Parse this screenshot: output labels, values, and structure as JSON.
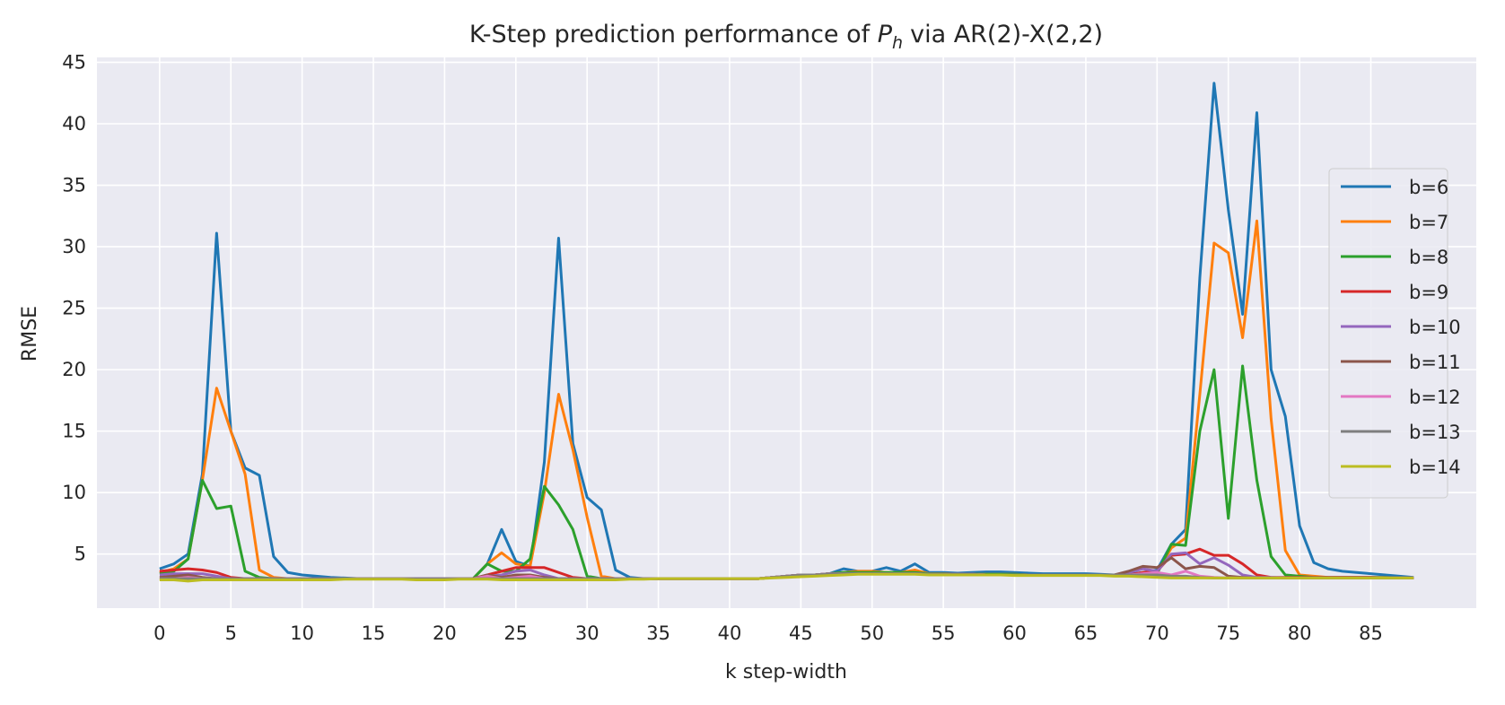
{
  "chart_data": {
    "type": "line",
    "title": "K-Step prediction performance of",
    "title_symbol": "P",
    "title_subscript": "h",
    "title_suffix": "via AR(2)-X(2,2)",
    "xlabel": "k step-width",
    "ylabel": "RMSE",
    "xlim": [
      -4.4,
      92.4
    ],
    "ylim": [
      0.6,
      45.4
    ],
    "xticks": [
      0,
      5,
      10,
      15,
      20,
      25,
      30,
      35,
      40,
      45,
      50,
      55,
      60,
      65,
      70,
      75,
      80,
      85
    ],
    "yticks": [
      5,
      10,
      15,
      20,
      25,
      30,
      35,
      40,
      45
    ],
    "grid": true,
    "legend_position": "right",
    "background": "#eaeaf2",
    "grid_color": "#ffffff",
    "x": [
      0,
      1,
      2,
      3,
      4,
      5,
      6,
      7,
      8,
      9,
      10,
      11,
      12,
      13,
      14,
      15,
      16,
      17,
      18,
      19,
      20,
      21,
      22,
      23,
      24,
      25,
      26,
      27,
      28,
      29,
      30,
      31,
      32,
      33,
      34,
      35,
      36,
      37,
      38,
      39,
      40,
      41,
      42,
      43,
      44,
      45,
      46,
      47,
      48,
      49,
      50,
      51,
      52,
      53,
      54,
      55,
      56,
      57,
      58,
      59,
      60,
      61,
      62,
      63,
      64,
      65,
      66,
      67,
      68,
      69,
      70,
      71,
      72,
      73,
      74,
      75,
      76,
      77,
      78,
      79,
      80,
      81,
      82,
      83,
      84,
      85,
      86,
      87,
      88
    ],
    "series": [
      {
        "name": "b=6",
        "color": "#1f77b4",
        "values": [
          3.8,
          4.2,
          5.0,
          11.5,
          31.1,
          15.0,
          12.0,
          11.4,
          4.8,
          3.5,
          3.3,
          3.2,
          3.1,
          3.05,
          3.0,
          3.0,
          3.0,
          3.0,
          3.0,
          3.0,
          3.0,
          3.0,
          3.0,
          4.2,
          7.0,
          4.4,
          4.0,
          12.5,
          30.7,
          14.0,
          9.6,
          8.6,
          3.7,
          3.1,
          3.0,
          3.0,
          3.0,
          3.0,
          3.0,
          3.0,
          3.0,
          3.0,
          3.0,
          3.1,
          3.2,
          3.3,
          3.3,
          3.4,
          3.8,
          3.6,
          3.6,
          3.9,
          3.6,
          4.2,
          3.5,
          3.5,
          3.45,
          3.5,
          3.55,
          3.55,
          3.5,
          3.45,
          3.4,
          3.4,
          3.4,
          3.4,
          3.35,
          3.3,
          3.35,
          3.5,
          3.7,
          5.8,
          7.0,
          27.5,
          43.3,
          33.0,
          24.5,
          40.9,
          20.0,
          16.2,
          7.3,
          4.3,
          3.8,
          3.6,
          3.5,
          3.4,
          3.3,
          3.2,
          3.1
        ]
      },
      {
        "name": "b=7",
        "color": "#ff7f0e",
        "values": [
          3.5,
          3.8,
          4.6,
          11.0,
          18.5,
          15.0,
          11.5,
          3.7,
          3.1,
          3.0,
          3.0,
          3.0,
          3.0,
          3.0,
          3.0,
          3.0,
          3.0,
          3.0,
          3.0,
          3.0,
          3.0,
          3.0,
          3.0,
          4.2,
          5.1,
          4.2,
          4.0,
          10.0,
          18.0,
          13.5,
          8.0,
          3.2,
          3.0,
          3.0,
          3.0,
          3.0,
          3.0,
          3.0,
          3.0,
          3.0,
          3.0,
          3.0,
          3.0,
          3.1,
          3.2,
          3.3,
          3.3,
          3.4,
          3.5,
          3.6,
          3.6,
          3.5,
          3.5,
          3.7,
          3.4,
          3.4,
          3.35,
          3.35,
          3.35,
          3.35,
          3.35,
          3.3,
          3.3,
          3.3,
          3.3,
          3.3,
          3.3,
          3.3,
          3.3,
          3.4,
          3.5,
          5.5,
          6.3,
          18.0,
          30.3,
          29.5,
          22.6,
          32.1,
          16.0,
          5.3,
          3.3,
          3.2,
          3.1,
          3.1,
          3.1,
          3.1,
          3.1,
          3.05,
          3.05
        ]
      },
      {
        "name": "b=8",
        "color": "#2ca02c",
        "values": [
          3.4,
          3.6,
          4.6,
          11.0,
          8.7,
          8.9,
          3.6,
          3.1,
          3.0,
          3.0,
          3.0,
          3.0,
          3.0,
          3.0,
          3.0,
          3.0,
          3.0,
          3.0,
          3.0,
          3.0,
          3.0,
          3.0,
          3.0,
          4.2,
          3.6,
          3.6,
          4.6,
          10.5,
          9.0,
          7.0,
          3.2,
          3.0,
          3.0,
          3.0,
          3.0,
          3.0,
          3.0,
          3.0,
          3.0,
          3.0,
          3.0,
          3.0,
          3.0,
          3.1,
          3.2,
          3.3,
          3.3,
          3.4,
          3.5,
          3.5,
          3.5,
          3.5,
          3.5,
          3.5,
          3.4,
          3.4,
          3.35,
          3.35,
          3.35,
          3.35,
          3.35,
          3.3,
          3.3,
          3.3,
          3.3,
          3.3,
          3.3,
          3.3,
          3.3,
          3.4,
          3.4,
          5.8,
          5.7,
          15.0,
          20.0,
          7.9,
          20.3,
          11.0,
          4.8,
          3.3,
          3.2,
          3.1,
          3.1,
          3.1,
          3.1,
          3.1,
          3.1,
          3.05,
          3.05
        ]
      },
      {
        "name": "b=9",
        "color": "#d62728",
        "values": [
          3.6,
          3.7,
          3.8,
          3.7,
          3.5,
          3.1,
          3.0,
          3.0,
          3.0,
          3.0,
          3.0,
          3.0,
          3.0,
          3.0,
          3.0,
          3.0,
          3.0,
          3.0,
          3.0,
          3.0,
          3.0,
          3.0,
          3.0,
          3.3,
          3.6,
          3.9,
          3.9,
          3.9,
          3.5,
          3.1,
          3.0,
          3.0,
          3.0,
          3.0,
          3.0,
          3.0,
          3.0,
          3.0,
          3.0,
          3.0,
          3.0,
          3.0,
          3.0,
          3.1,
          3.2,
          3.3,
          3.3,
          3.4,
          3.4,
          3.4,
          3.4,
          3.4,
          3.4,
          3.4,
          3.35,
          3.35,
          3.35,
          3.35,
          3.3,
          3.3,
          3.3,
          3.3,
          3.3,
          3.3,
          3.3,
          3.3,
          3.3,
          3.3,
          3.3,
          3.5,
          3.6,
          4.9,
          5.0,
          5.4,
          4.9,
          4.9,
          4.2,
          3.3,
          3.1,
          3.1,
          3.1,
          3.1,
          3.1,
          3.1,
          3.1,
          3.1,
          3.05,
          3.05,
          3.05
        ]
      },
      {
        "name": "b=10",
        "color": "#9467bd",
        "values": [
          3.3,
          3.4,
          3.4,
          3.4,
          3.2,
          3.0,
          3.0,
          3.0,
          3.0,
          3.0,
          3.0,
          3.0,
          3.0,
          3.0,
          3.0,
          3.0,
          3.0,
          3.0,
          3.0,
          3.0,
          3.0,
          3.0,
          3.0,
          3.2,
          3.3,
          3.6,
          3.7,
          3.3,
          3.0,
          3.0,
          3.0,
          3.0,
          3.0,
          3.0,
          3.0,
          3.0,
          3.0,
          3.0,
          3.0,
          3.0,
          3.0,
          3.0,
          3.0,
          3.1,
          3.2,
          3.3,
          3.3,
          3.4,
          3.4,
          3.4,
          3.4,
          3.4,
          3.4,
          3.4,
          3.35,
          3.35,
          3.35,
          3.35,
          3.3,
          3.3,
          3.3,
          3.3,
          3.3,
          3.3,
          3.3,
          3.3,
          3.3,
          3.3,
          3.5,
          3.8,
          3.6,
          5.0,
          5.1,
          4.2,
          4.7,
          4.1,
          3.3,
          3.1,
          3.1,
          3.05,
          3.05,
          3.05,
          3.05,
          3.05,
          3.05,
          3.05,
          3.05,
          3.05,
          3.05
        ]
      },
      {
        "name": "b=11",
        "color": "#8c564b",
        "values": [
          3.1,
          3.2,
          3.3,
          3.1,
          3.0,
          3.0,
          3.0,
          3.0,
          3.0,
          3.0,
          3.0,
          3.0,
          3.0,
          3.0,
          3.0,
          3.0,
          3.0,
          3.0,
          3.0,
          3.0,
          3.0,
          3.0,
          3.0,
          3.3,
          3.1,
          3.3,
          3.3,
          3.1,
          3.0,
          3.0,
          3.0,
          3.0,
          3.0,
          3.0,
          3.0,
          3.0,
          3.0,
          3.0,
          3.0,
          3.0,
          3.0,
          3.0,
          3.0,
          3.1,
          3.2,
          3.3,
          3.3,
          3.4,
          3.4,
          3.4,
          3.4,
          3.4,
          3.4,
          3.4,
          3.35,
          3.35,
          3.35,
          3.35,
          3.3,
          3.3,
          3.3,
          3.3,
          3.3,
          3.3,
          3.3,
          3.3,
          3.3,
          3.3,
          3.6,
          4.0,
          3.9,
          4.7,
          3.8,
          4.0,
          3.9,
          3.2,
          3.1,
          3.05,
          3.05,
          3.05,
          3.05,
          3.05,
          3.05,
          3.05,
          3.05,
          3.05,
          3.05,
          3.05,
          3.05
        ]
      },
      {
        "name": "b=12",
        "color": "#e377c2",
        "values": [
          3.0,
          3.0,
          3.1,
          3.0,
          3.0,
          3.0,
          3.0,
          3.0,
          3.0,
          3.0,
          3.0,
          3.0,
          3.0,
          3.0,
          3.0,
          3.0,
          3.0,
          3.0,
          3.0,
          3.0,
          3.0,
          3.0,
          3.0,
          3.2,
          3.0,
          3.1,
          3.2,
          3.0,
          3.0,
          3.0,
          3.0,
          3.0,
          3.0,
          3.0,
          3.0,
          3.0,
          3.0,
          3.0,
          3.0,
          3.0,
          3.0,
          3.0,
          3.0,
          3.1,
          3.2,
          3.3,
          3.3,
          3.4,
          3.4,
          3.4,
          3.4,
          3.4,
          3.4,
          3.4,
          3.35,
          3.35,
          3.35,
          3.35,
          3.3,
          3.3,
          3.3,
          3.3,
          3.3,
          3.3,
          3.3,
          3.3,
          3.3,
          3.3,
          3.3,
          3.4,
          3.5,
          3.3,
          3.6,
          3.2,
          3.1,
          3.05,
          3.05,
          3.05,
          3.05,
          3.05,
          3.05,
          3.05,
          3.05,
          3.05,
          3.05,
          3.05,
          3.05,
          3.05,
          3.05
        ]
      },
      {
        "name": "b=13",
        "color": "#7f7f7f",
        "values": [
          3.0,
          3.0,
          3.0,
          3.0,
          3.0,
          3.0,
          3.0,
          3.0,
          3.0,
          3.0,
          3.0,
          3.0,
          3.0,
          3.0,
          3.0,
          3.0,
          3.0,
          3.0,
          3.0,
          3.0,
          3.0,
          3.0,
          3.0,
          3.0,
          3.0,
          3.0,
          3.0,
          3.0,
          3.0,
          3.0,
          3.0,
          3.0,
          3.0,
          3.0,
          3.0,
          3.0,
          3.0,
          3.0,
          3.0,
          3.0,
          3.0,
          3.0,
          3.0,
          3.1,
          3.2,
          3.3,
          3.3,
          3.4,
          3.4,
          3.4,
          3.4,
          3.4,
          3.4,
          3.4,
          3.35,
          3.35,
          3.35,
          3.35,
          3.3,
          3.3,
          3.3,
          3.3,
          3.3,
          3.3,
          3.3,
          3.3,
          3.3,
          3.3,
          3.3,
          3.3,
          3.3,
          3.2,
          3.2,
          3.1,
          3.05,
          3.05,
          3.05,
          3.05,
          3.05,
          3.05,
          3.05,
          3.05,
          3.05,
          3.05,
          3.05,
          3.05,
          3.05,
          3.05,
          3.05
        ]
      },
      {
        "name": "b=14",
        "color": "#bcbd22",
        "values": [
          2.9,
          2.9,
          2.8,
          2.9,
          2.9,
          2.9,
          2.9,
          2.9,
          2.9,
          2.9,
          2.9,
          2.9,
          2.9,
          2.95,
          2.95,
          2.95,
          2.95,
          2.95,
          2.9,
          2.9,
          2.9,
          2.95,
          2.95,
          2.95,
          2.9,
          2.9,
          2.9,
          2.9,
          2.9,
          2.9,
          2.9,
          2.9,
          2.9,
          2.95,
          2.95,
          3.0,
          3.0,
          3.0,
          3.0,
          3.0,
          3.0,
          3.0,
          3.0,
          3.05,
          3.1,
          3.15,
          3.2,
          3.25,
          3.3,
          3.35,
          3.35,
          3.35,
          3.35,
          3.35,
          3.3,
          3.3,
          3.3,
          3.3,
          3.3,
          3.3,
          3.25,
          3.25,
          3.25,
          3.25,
          3.25,
          3.25,
          3.25,
          3.2,
          3.2,
          3.15,
          3.1,
          3.05,
          3.05,
          3.05,
          3.05,
          3.05,
          3.05,
          3.05,
          3.05,
          3.05,
          3.05,
          3.05,
          3.05,
          3.05,
          3.05,
          3.05,
          3.05,
          3.05,
          3.05
        ]
      }
    ]
  }
}
